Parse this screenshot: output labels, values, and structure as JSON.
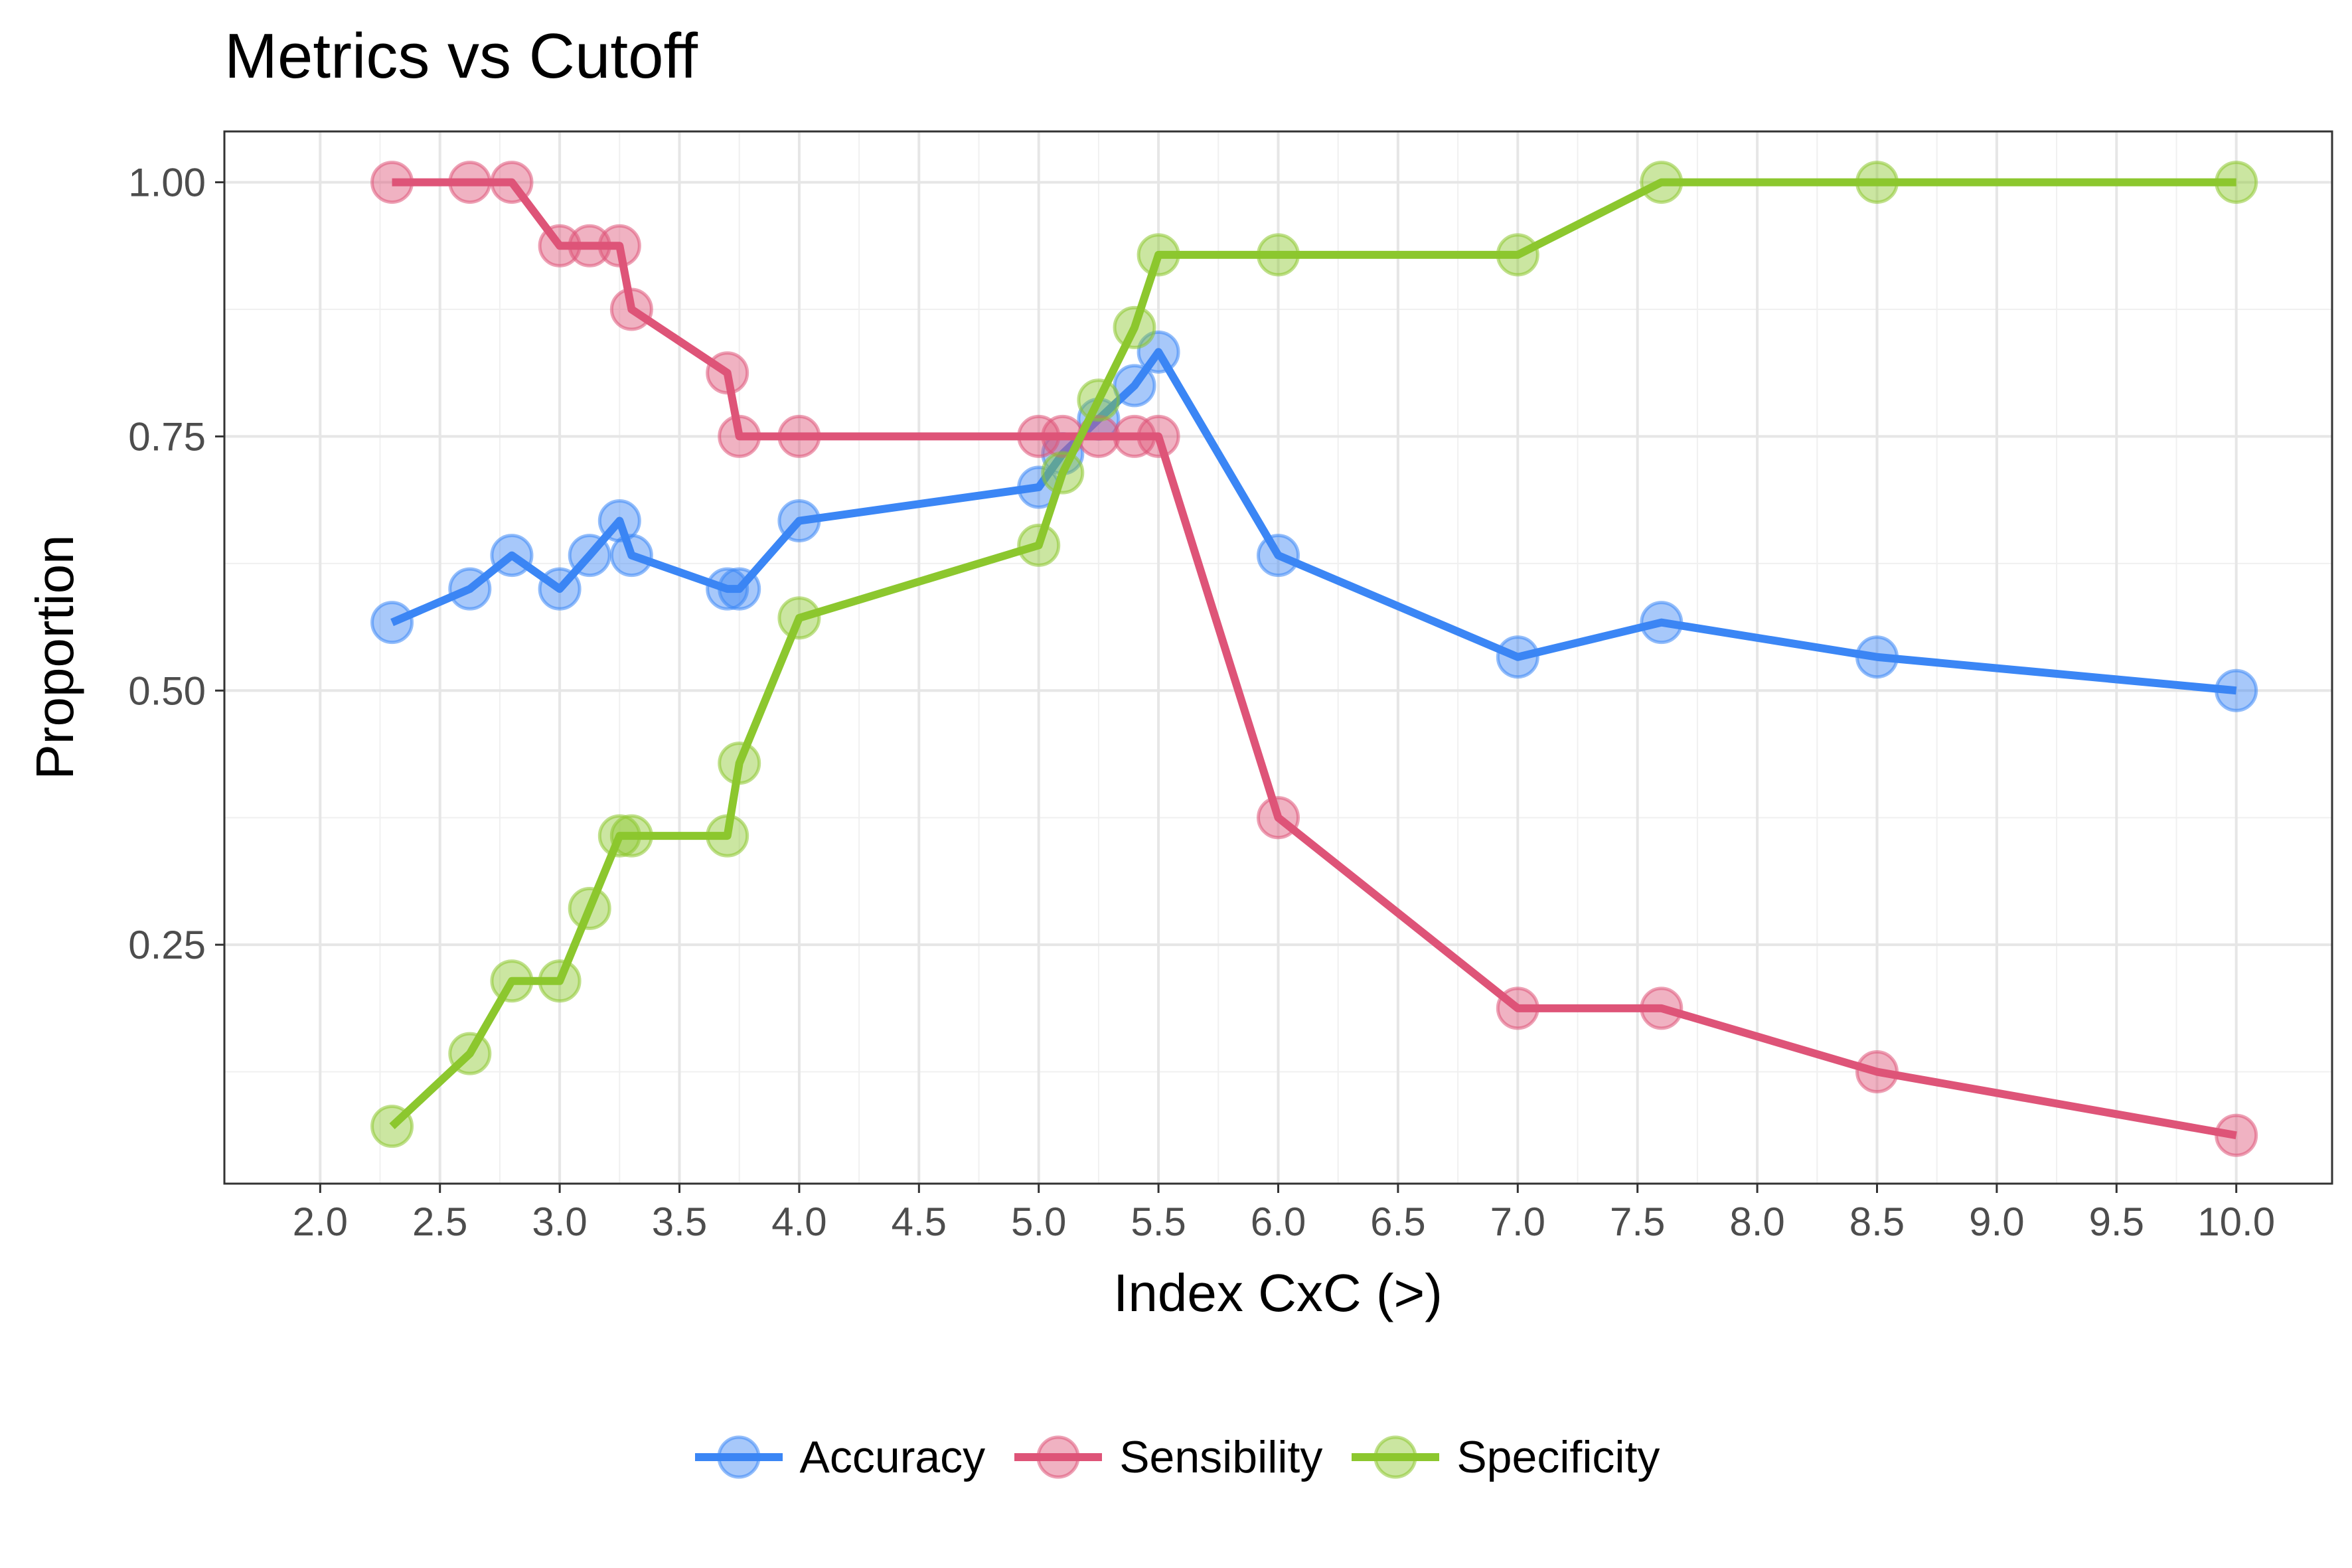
{
  "chart_data": {
    "type": "line",
    "title": "Metrics vs Cutoff",
    "xlabel": "Index CxC (>)",
    "ylabel": "Proportion",
    "xlim": [
      1.6,
      10.4
    ],
    "ylim": [
      0.015,
      1.05
    ],
    "x_ticks": [
      "2.0",
      "2.5",
      "3.0",
      "3.5",
      "4.0",
      "4.5",
      "5.0",
      "5.5",
      "6.0",
      "6.5",
      "7.0",
      "7.5",
      "8.0",
      "8.5",
      "9.0",
      "9.5",
      "10.0"
    ],
    "y_ticks": [
      "0.25",
      "0.50",
      "0.75",
      "1.00"
    ],
    "grid": true,
    "legend_position": "bottom",
    "x": [
      2.3,
      2.625,
      2.8,
      3.0,
      3.125,
      3.25,
      3.3,
      3.7,
      3.75,
      4.0,
      5.0,
      5.1,
      5.25,
      5.4,
      5.5,
      6.0,
      7.0,
      7.6,
      8.5,
      10.0
    ],
    "series": [
      {
        "name": "Accuracy",
        "color": "#3b86f5",
        "values": [
          0.567,
          0.6,
          0.633,
          0.6,
          0.633,
          0.667,
          0.633,
          0.6,
          0.6,
          0.667,
          0.7,
          0.733,
          0.767,
          0.8,
          0.833,
          0.633,
          0.533,
          0.567,
          0.533,
          0.5
        ]
      },
      {
        "name": "Sensibility",
        "color": "#de5478",
        "values": [
          1.0,
          1.0,
          1.0,
          0.9375,
          0.9375,
          0.9375,
          0.875,
          0.8125,
          0.75,
          0.75,
          0.75,
          0.75,
          0.75,
          0.75,
          0.75,
          0.375,
          0.1875,
          0.1875,
          0.125,
          0.0625
        ]
      },
      {
        "name": "Specificity",
        "color": "#8cc72e",
        "values": [
          0.0714,
          0.1429,
          0.2143,
          0.2143,
          0.2857,
          0.3571,
          0.3571,
          0.3571,
          0.4286,
          0.5714,
          0.6429,
          0.7143,
          0.7857,
          0.8571,
          0.9286,
          0.9286,
          0.9286,
          1.0,
          1.0,
          1.0
        ]
      }
    ]
  }
}
